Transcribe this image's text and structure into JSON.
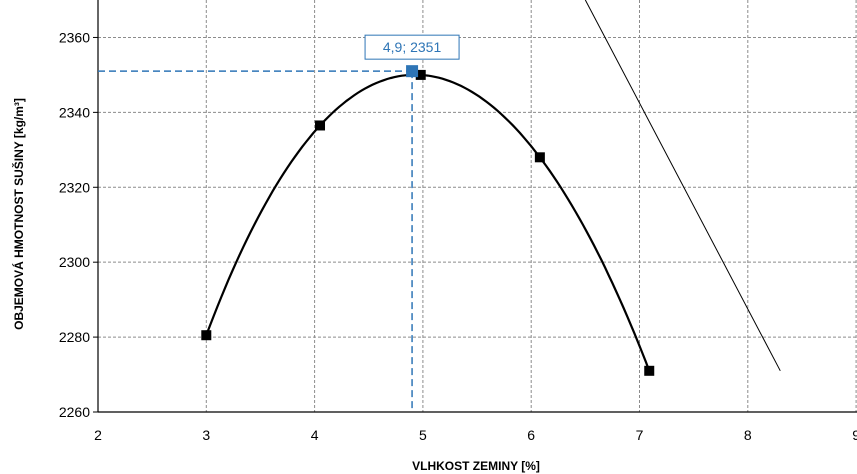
{
  "chart_data": {
    "type": "scatter",
    "title": "",
    "xlabel": "VLHKOST ZEMINY [%]",
    "ylabel": "OBJEMOVÁ HMOTNOST SUŠINY [kg/m³]",
    "xlim": [
      2,
      9
    ],
    "ylim": [
      2260,
      2370
    ],
    "x_ticks": [
      2,
      3,
      4,
      5,
      6,
      7,
      8,
      9
    ],
    "y_ticks": [
      2260,
      2280,
      2300,
      2320,
      2340,
      2360
    ],
    "x_tick_labels": [
      "2",
      "3",
      "4",
      "5",
      "6",
      "7",
      "8",
      "9"
    ],
    "y_tick_labels": [
      "2260",
      "2280",
      "2300",
      "2320",
      "2340",
      "2360"
    ],
    "grid": true,
    "series": [
      {
        "style": "smooth-line-with-square-markers",
        "color": "#000000",
        "points": [
          {
            "x": 3.0,
            "y": 2280.5
          },
          {
            "x": 4.05,
            "y": 2336.5
          },
          {
            "x": 4.98,
            "y": 2350.0
          },
          {
            "x": 6.08,
            "y": 2328.0
          },
          {
            "x": 7.09,
            "y": 2271.0
          }
        ]
      },
      {
        "style": "thin-line",
        "color": "#000000",
        "points": [
          {
            "x": 6.5,
            "y": 2370.0
          },
          {
            "x": 8.3,
            "y": 2271.0
          }
        ]
      }
    ],
    "optimum": {
      "x": 4.9,
      "y": 2351,
      "label": "4,9; 2351",
      "color": "#2e75b6"
    }
  }
}
